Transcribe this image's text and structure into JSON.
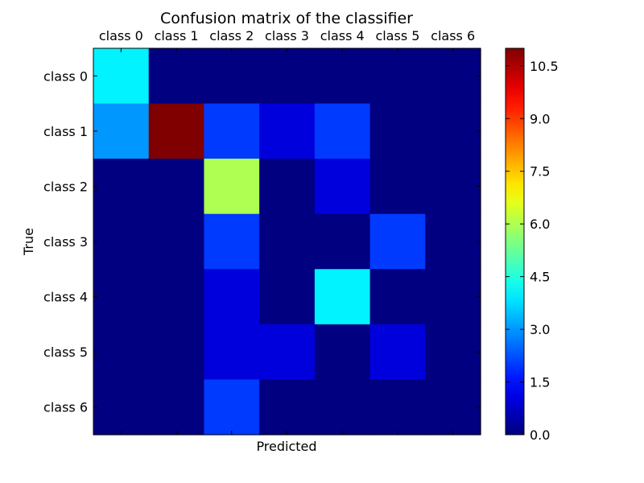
{
  "chart_data": {
    "type": "heatmap",
    "title": "Confusion matrix of the classifier",
    "xlabel": "Predicted",
    "ylabel": "True",
    "x_categories": [
      "class 0",
      "class 1",
      "class 2",
      "class 3",
      "class 4",
      "class 5",
      "class 6"
    ],
    "y_categories": [
      "class 0",
      "class 1",
      "class 2",
      "class 3",
      "class 4",
      "class 5",
      "class 6"
    ],
    "x_tick_position": "top",
    "values": [
      [
        4,
        0,
        0,
        0,
        0,
        0,
        0
      ],
      [
        3,
        11,
        2,
        1,
        2,
        0,
        0
      ],
      [
        0,
        0,
        6,
        0,
        1,
        0,
        0
      ],
      [
        0,
        0,
        2,
        0,
        0,
        2,
        0
      ],
      [
        0,
        0,
        1,
        0,
        4,
        0,
        0
      ],
      [
        0,
        0,
        1,
        1,
        0,
        1,
        0
      ],
      [
        0,
        0,
        2,
        0,
        0,
        0,
        0
      ]
    ],
    "colormap": "jet",
    "colorbar": {
      "range": [
        0,
        11
      ],
      "ticks": [
        "0.0",
        "1.5",
        "3.0",
        "4.5",
        "6.0",
        "7.5",
        "9.0",
        "10.5"
      ]
    },
    "grid": false
  }
}
